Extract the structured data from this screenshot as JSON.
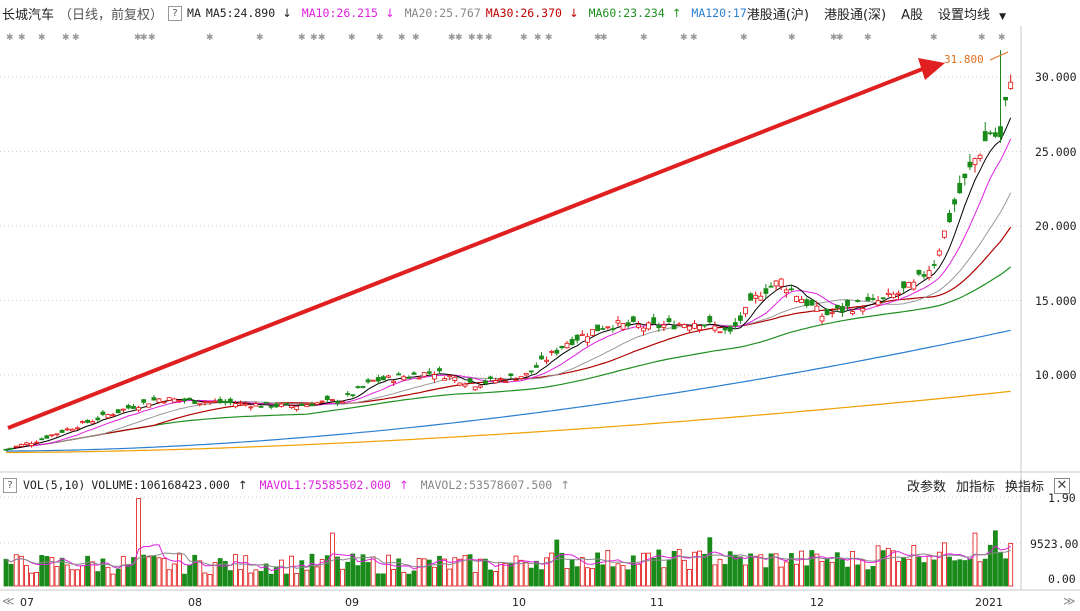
{
  "header": {
    "stock_name": "长城汽车",
    "period": "（日线，前复权）",
    "help_icon_text": "?",
    "ma_label": "MA",
    "ma5": "MA5:24.890",
    "ma10": "MA10:26.215",
    "ma20": "MA20:25.767",
    "ma30": "MA30:26.370",
    "ma60": "MA60:23.234",
    "ma120": "MA120:17",
    "tab_hk_sh": "港股通(沪)",
    "tab_hk_sz": "港股通(深)",
    "tab_a": "A股",
    "settings": "设置均线",
    "settings_icon": "caret-down-icon"
  },
  "volume_header": {
    "help_icon_text": "?",
    "indicator": "VOL(5,10)",
    "volume": "VOLUME:106168423.000",
    "mavol1": "MAVOL1:75585502.000",
    "mavol2": "MAVOL2:53578607.500",
    "btn_params": "改参数",
    "btn_add": "加指标",
    "btn_switch": "换指标",
    "close_icon": "close-icon"
  },
  "price_axis": [
    "30.000",
    "25.000",
    "20.000",
    "15.000",
    "10.000"
  ],
  "volume_axis": [
    "1.90",
    "9523.00",
    "0.00"
  ],
  "peak_label": "31.800",
  "x_labels": [
    "07",
    "08",
    "09",
    "10",
    "11",
    "12",
    "2021"
  ],
  "colors": {
    "up": "#e01010",
    "down": "#1a8a1a",
    "ma5": "#000000",
    "ma10": "#e020e0",
    "ma20": "#999999",
    "ma30": "#b00000",
    "ma60": "#209020",
    "ma120": "#2a7fd0",
    "ma250": "#f0a000",
    "arrow": "#e02020",
    "grid": "#d0d0d0"
  },
  "chart_data": {
    "type": "candlestick",
    "x": [
      "07",
      "08",
      "09",
      "10",
      "11",
      "12",
      "2021"
    ],
    "ylim": [
      4.5,
      33
    ],
    "price_anchor_points": [
      {
        "date": "07",
        "close": 5.2
      },
      {
        "date": "08",
        "close": 7.9
      },
      {
        "date": "09",
        "close": 8.2
      },
      {
        "date": "10",
        "close": 9.6
      },
      {
        "date": "11",
        "close": 12.6
      },
      {
        "date": "12",
        "close": 15.3
      },
      {
        "date": "2021",
        "close": 30.0
      }
    ],
    "peak": 31.8
  }
}
